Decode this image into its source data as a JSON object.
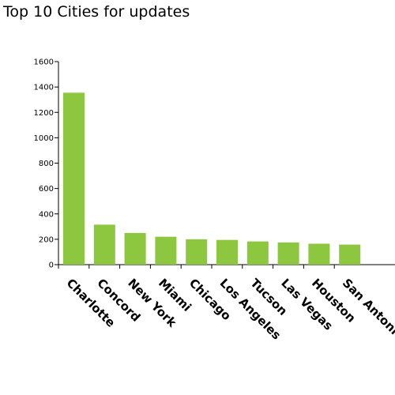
{
  "chart_data": {
    "type": "bar",
    "title": "Top 10 Cities for updates",
    "xlabel": "",
    "ylabel": "",
    "ylim": [
      0,
      1600
    ],
    "yticks": [
      0,
      200,
      400,
      600,
      800,
      1000,
      1200,
      1400,
      1600
    ],
    "grid": false,
    "legend": "none",
    "categories": [
      "Charlotte",
      "Concord",
      "New York",
      "Miami",
      "Chicago",
      "Los Angeles",
      "Tucson",
      "Las Vegas",
      "Houston",
      "San Antonio"
    ],
    "values": [
      1355,
      315,
      250,
      220,
      200,
      195,
      183,
      175,
      165,
      158
    ],
    "bar_color": "#8dc63f",
    "axis_color": "#000000"
  }
}
